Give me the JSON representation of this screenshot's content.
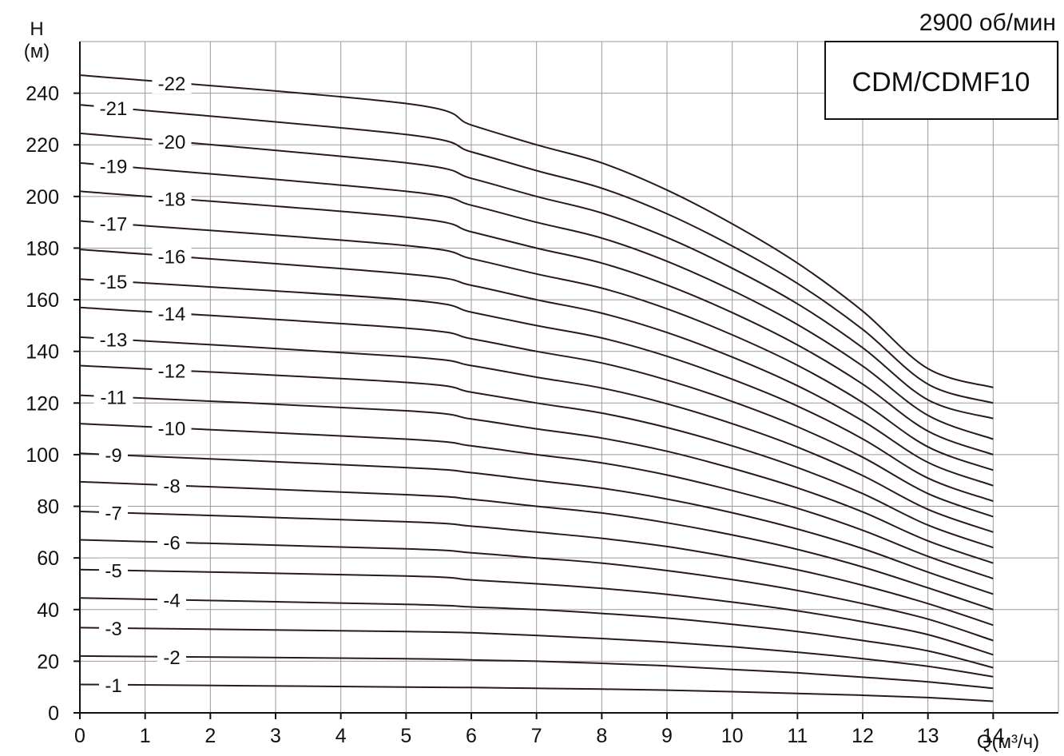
{
  "chart_data": {
    "type": "line",
    "title": "CDM/CDMF10",
    "subtitle": "2900 об/мин",
    "ylabel_line1": "H",
    "ylabel_line2": "(м)",
    "xlabel": "Q(м³/ч)",
    "xlim": [
      0,
      15
    ],
    "ylim": [
      0,
      260
    ],
    "grid": true,
    "x_ticks": [
      0,
      1,
      2,
      3,
      4,
      5,
      6,
      7,
      8,
      9,
      10,
      11,
      12,
      13,
      14
    ],
    "y_ticks": [
      0,
      20,
      40,
      60,
      80,
      100,
      120,
      140,
      160,
      180,
      200,
      220,
      240
    ],
    "x_data": [
      0,
      5,
      6,
      7,
      8,
      9,
      10,
      11,
      12,
      13,
      14
    ],
    "series": [
      {
        "name": "-1",
        "values": [
          11,
          10,
          9.8,
          9.5,
          9.2,
          8.8,
          8.2,
          7.5,
          6.8,
          5.9,
          4.5
        ]
      },
      {
        "name": "-2",
        "values": [
          22,
          21,
          20.5,
          20,
          19.2,
          18.2,
          16.8,
          15.5,
          13.8,
          12,
          9.5
        ]
      },
      {
        "name": "-3",
        "values": [
          33,
          31.5,
          31,
          30,
          28.8,
          27.4,
          25.6,
          23.5,
          21,
          18,
          14
        ]
      },
      {
        "name": "-4",
        "values": [
          44.5,
          42,
          41,
          40,
          38.5,
          36.7,
          34.3,
          31.5,
          28,
          24,
          17.5
        ]
      },
      {
        "name": "-5",
        "values": [
          55.5,
          53,
          51.5,
          50,
          48.2,
          45.9,
          42.9,
          39.5,
          35.3,
          30.3,
          22.5
        ]
      },
      {
        "name": "-6",
        "values": [
          67,
          63.5,
          62,
          60,
          58,
          55.1,
          51.6,
          47.4,
          42.3,
          36.3,
          28
        ]
      },
      {
        "name": "-7",
        "values": [
          78,
          74,
          72.3,
          70,
          67.6,
          64.4,
          60.2,
          55.4,
          49.4,
          42.3,
          34
        ]
      },
      {
        "name": "-8",
        "values": [
          89.5,
          84.5,
          82.7,
          80,
          77.4,
          73.6,
          68.9,
          63.3,
          56.5,
          48.4,
          40
        ]
      },
      {
        "name": "-9",
        "values": [
          100.5,
          95,
          93,
          90,
          87,
          82.8,
          77.5,
          71.2,
          63.6,
          54.5,
          46
        ]
      },
      {
        "name": "-10",
        "values": [
          112,
          106,
          103.4,
          100,
          96.8,
          92.1,
          86.1,
          79.2,
          70.7,
          60.6,
          52
        ]
      },
      {
        "name": "-11",
        "values": [
          123,
          117,
          113.8,
          110,
          106.4,
          101.3,
          94.7,
          87.1,
          77.8,
          66.6,
          58
        ]
      },
      {
        "name": "-12",
        "values": [
          134.5,
          128,
          124.2,
          120,
          116.1,
          110.5,
          103.4,
          95,
          84.9,
          72.7,
          64
        ]
      },
      {
        "name": "-13",
        "values": [
          145.5,
          138,
          134.5,
          130,
          125.8,
          119.7,
          112,
          102.9,
          91.9,
          78.8,
          70
        ]
      },
      {
        "name": "-14",
        "values": [
          157,
          149,
          144.9,
          140,
          135.5,
          128.9,
          120.6,
          110.8,
          99,
          84.9,
          76
        ]
      },
      {
        "name": "-15",
        "values": [
          168,
          160,
          155.2,
          150,
          145.2,
          138.1,
          129.2,
          118.8,
          106.1,
          90.9,
          82
        ]
      },
      {
        "name": "-16",
        "values": [
          179.5,
          170,
          165.6,
          160,
          154.8,
          147.3,
          137.8,
          126.7,
          113.1,
          97,
          88
        ]
      },
      {
        "name": "-17",
        "values": [
          190.5,
          181,
          175.9,
          170,
          164.5,
          156.5,
          146.4,
          134.6,
          120.2,
          103,
          94
        ]
      },
      {
        "name": "-18",
        "values": [
          202,
          192,
          186.3,
          180,
          174.2,
          165.7,
          155,
          142.5,
          127.3,
          109.1,
          100
        ]
      },
      {
        "name": "-19",
        "values": [
          213,
          202,
          196.6,
          190,
          183.9,
          174.9,
          163.6,
          150.4,
          134.3,
          115.2,
          106
        ]
      },
      {
        "name": "-20",
        "values": [
          224.5,
          213,
          207,
          200,
          193.6,
          184.1,
          172.2,
          158.4,
          141.4,
          121.2,
          114
        ]
      },
      {
        "name": "-21",
        "values": [
          235.5,
          224,
          217.3,
          210,
          203.2,
          193.3,
          180.8,
          166.3,
          148.5,
          127.3,
          120
        ]
      },
      {
        "name": "-22",
        "values": [
          247,
          236,
          227.7,
          220,
          213,
          202.5,
          189.4,
          174.2,
          155.6,
          133.3,
          126
        ]
      }
    ]
  },
  "colors": {
    "curve": "#2a1a1a",
    "grid": "#9a9a9a",
    "axis": "#111111",
    "background": "#ffffff"
  }
}
